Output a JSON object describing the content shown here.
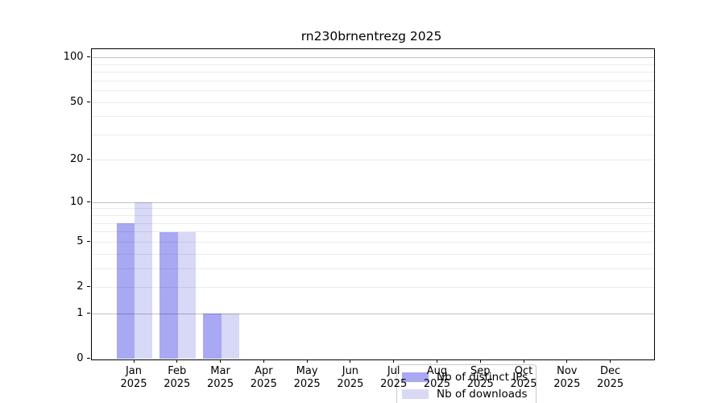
{
  "figure": {
    "background": "#ffffff"
  },
  "chart_data": {
    "type": "bar",
    "title": "rn230brnentrezg 2025",
    "categories": [
      "Jan",
      "Feb",
      "Mar",
      "Apr",
      "May",
      "Jun",
      "Jul",
      "Aug",
      "Sep",
      "Oct",
      "Nov",
      "Dec"
    ],
    "x_sublabel": "2025",
    "series": [
      {
        "name": "Nb of distinct IPs",
        "color": "#a8a8f3",
        "values": [
          7,
          6,
          1,
          0,
          0,
          0,
          0,
          0,
          0,
          0,
          0,
          0
        ]
      },
      {
        "name": "Nb of downloads",
        "color": "#d8d8f7",
        "values": [
          10,
          6,
          1,
          0,
          0,
          0,
          0,
          0,
          0,
          0,
          0,
          0
        ]
      }
    ],
    "y_scale": "log1p",
    "ylim": [
      0,
      116
    ],
    "y_tick_values": [
      0,
      1,
      2,
      5,
      10,
      20,
      50,
      100
    ],
    "y_minor_grid_values": [
      2,
      3,
      4,
      5,
      6,
      7,
      8,
      9,
      20,
      30,
      40,
      50,
      60,
      70,
      80,
      90
    ],
    "y_major_grid_values": [
      1,
      10,
      100
    ],
    "grid": true,
    "legend_position": "lower center (inside plot)"
  }
}
